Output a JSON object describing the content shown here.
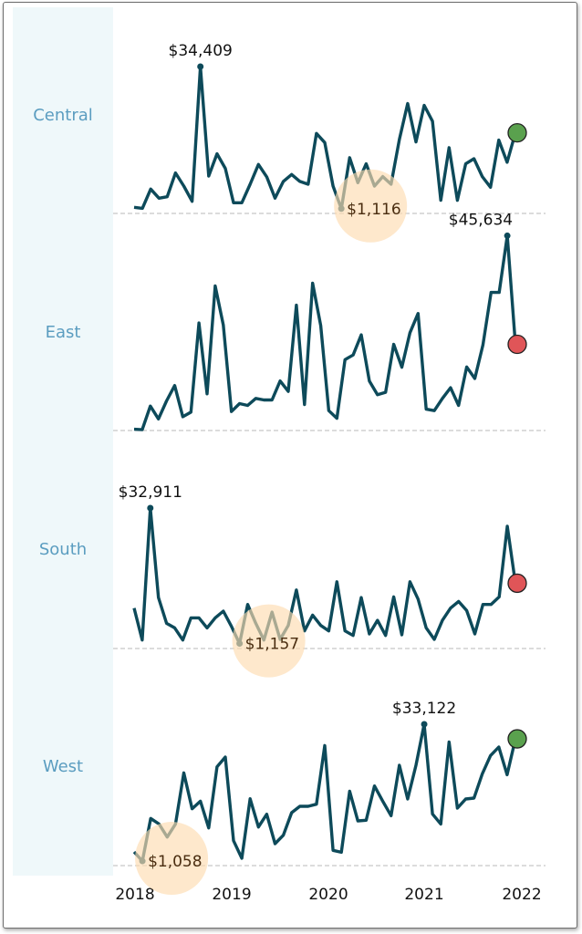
{
  "chart_data": {
    "type": "line",
    "title": "",
    "xlabel": "",
    "ylabel": "",
    "x_tick_labels": [
      "2018",
      "2019",
      "2020",
      "2021",
      "2022"
    ],
    "grid": false,
    "baseline_value": 0,
    "line_color": "#0d4a5a",
    "highlight_color": "#fddcb0",
    "up_color": "#5aa14e",
    "down_color": "#e05558",
    "series": [
      {
        "name": "Central",
        "trend": "up",
        "values": [
          1430,
          1200,
          5700,
          3570,
          3920,
          9480,
          6420,
          2850,
          34409,
          8770,
          13970,
          10550,
          2500,
          2500,
          6840,
          11480,
          8560,
          3570,
          7490,
          9130,
          7490,
          6840,
          18750,
          16610,
          6420,
          1116,
          13050,
          7200,
          11620,
          6420,
          8630,
          6840,
          17330,
          25740,
          16760,
          25310,
          21600,
          3070,
          15400,
          3070,
          11620,
          12830,
          8630,
          6130,
          17180,
          11980,
          18890
        ],
        "max_label": "$34,409",
        "min_label": "$1,116"
      },
      {
        "name": "East",
        "trend": "down",
        "values": [
          300,
          200,
          5730,
          2720,
          6950,
          10530,
          3220,
          4300,
          25200,
          8590,
          33870,
          24700,
          4440,
          6300,
          5870,
          7520,
          7160,
          7160,
          11600,
          9160,
          29360,
          6090,
          34510,
          24560,
          4650,
          2860,
          16610,
          17690,
          22410,
          11600,
          8380,
          8950,
          20190,
          14820,
          22910,
          27420,
          5010,
          4650,
          7520,
          10020,
          5870,
          14890,
          12170,
          20050,
          32360,
          32360,
          45634,
          20190
        ],
        "max_label": "$45,634",
        "min_label": ""
      },
      {
        "name": "South",
        "trend": "down",
        "values": [
          9460,
          1990,
          32911,
          11940,
          5900,
          4830,
          1990,
          7180,
          7180,
          4830,
          7180,
          8750,
          5190,
          1157,
          10310,
          5900,
          1990,
          8530,
          2130,
          5400,
          13720,
          4120,
          7820,
          5400,
          4120,
          15640,
          4120,
          3060,
          11940,
          3410,
          6610,
          3060,
          12090,
          3200,
          15640,
          11590,
          4830,
          2130,
          6610,
          9460,
          11020,
          8890,
          3410,
          10310,
          10310,
          12090,
          28650,
          15290
        ],
        "max_label": "$32,911",
        "min_label": "$1,157"
      },
      {
        "name": "West",
        "trend": "up",
        "values": [
          3200,
          1058,
          11040,
          9750,
          6690,
          9750,
          21720,
          13310,
          15090,
          8830,
          23140,
          25420,
          5840,
          1710,
          15660,
          9040,
          12030,
          5130,
          7120,
          12390,
          13880,
          13880,
          14380,
          28120,
          3560,
          3130,
          17440,
          10470,
          10610,
          18650,
          15090,
          11680,
          23500,
          15590,
          23500,
          33122,
          12100,
          9750,
          28980,
          13460,
          15590,
          15810,
          21500,
          25770,
          27770,
          21290,
          29690
        ],
        "max_label": "$33,122",
        "min_label": "$1,058"
      }
    ]
  }
}
